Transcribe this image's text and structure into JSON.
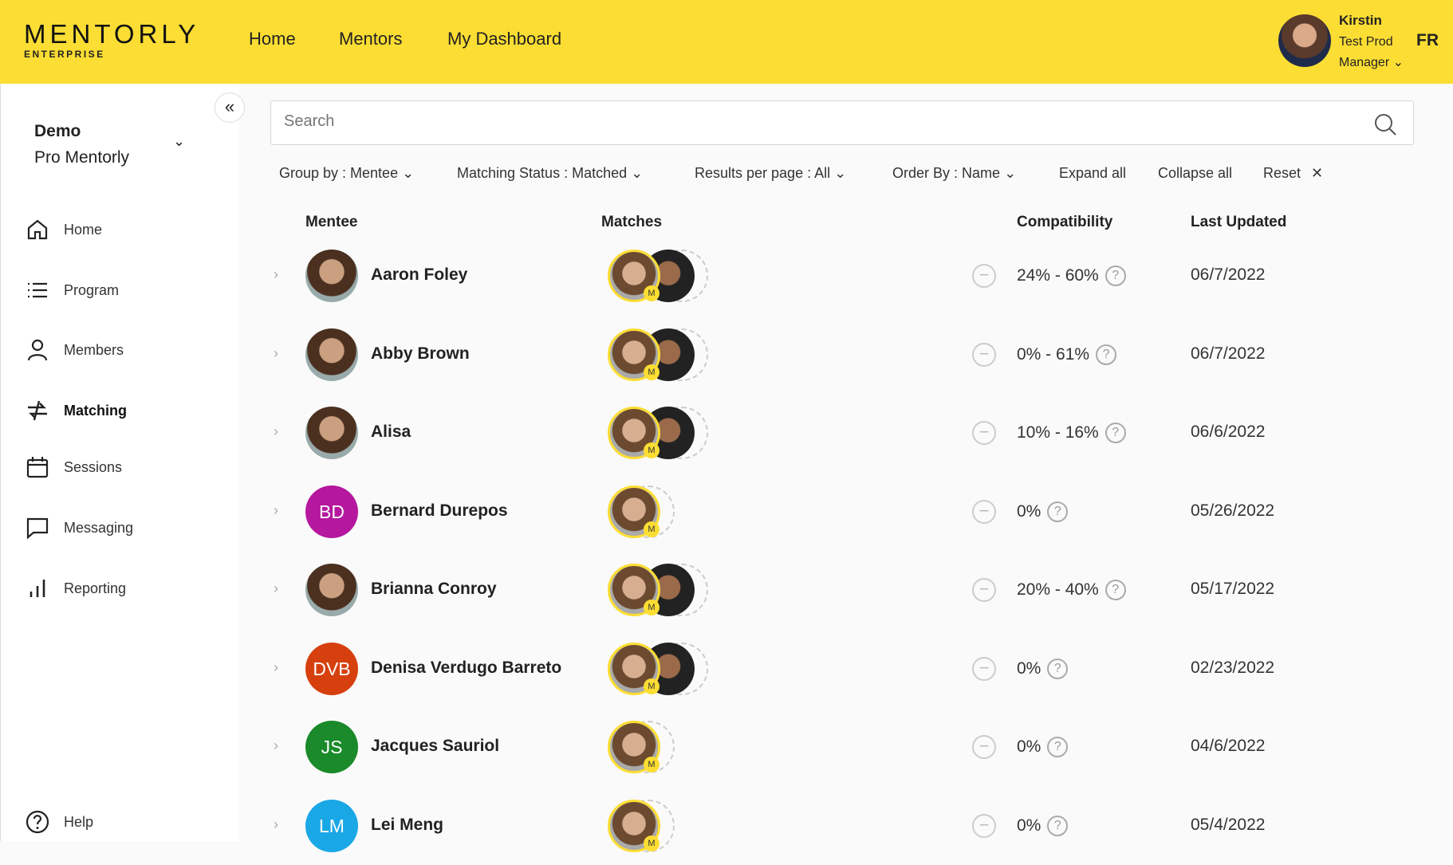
{
  "header": {
    "logo": "MENTORLY",
    "logo_sub": "ENTERPRISE",
    "nav": [
      "Home",
      "Mentors",
      "My Dashboard"
    ],
    "user": {
      "name": "Kirstin",
      "line2": "Test Prod",
      "line3": "Manager"
    },
    "lang": "FR"
  },
  "sidebar": {
    "org_name": "Demo",
    "org_sub": "Pro Mentorly",
    "items": [
      {
        "label": "Home",
        "icon": "home-icon"
      },
      {
        "label": "Program",
        "icon": "list-icon"
      },
      {
        "label": "Members",
        "icon": "person-icon"
      },
      {
        "label": "Matching",
        "icon": "matching-icon",
        "active": true
      },
      {
        "label": "Sessions",
        "icon": "calendar-icon"
      },
      {
        "label": "Messaging",
        "icon": "chat-icon"
      },
      {
        "label": "Reporting",
        "icon": "bar-chart-icon"
      }
    ],
    "help": "Help"
  },
  "search": {
    "placeholder": "Search",
    "value": ""
  },
  "filters": {
    "group_by": "Group by : Mentee",
    "status": "Matching Status : Matched",
    "per_page": "Results per page : All",
    "order": "Order By : Name",
    "expand": "Expand all",
    "collapse": "Collapse all",
    "reset": "Reset"
  },
  "table": {
    "headers": [
      "Mentee",
      "Matches",
      "Compatibility",
      "Last Updated"
    ],
    "rows": [
      {
        "name": "Aaron Foley",
        "initials": "",
        "color": "",
        "matches": 2,
        "compat": "24% - 60%",
        "date": "06/7/2022"
      },
      {
        "name": "Abby Brown",
        "initials": "",
        "color": "",
        "matches": 2,
        "compat": "0% - 61%",
        "date": "06/7/2022"
      },
      {
        "name": "Alisa",
        "initials": "",
        "color": "",
        "matches": 2,
        "compat": "10% - 16%",
        "date": "06/6/2022"
      },
      {
        "name": "Bernard Durepos",
        "initials": "BD",
        "color": "#b5179e",
        "matches": 1,
        "compat": "0%",
        "date": "05/26/2022"
      },
      {
        "name": "Brianna Conroy",
        "initials": "",
        "color": "",
        "matches": 2,
        "compat": "20% - 40%",
        "date": "05/17/2022"
      },
      {
        "name": "Denisa Verdugo Barreto",
        "initials": "DVB",
        "color": "#d6400f",
        "matches": 2,
        "compat": "0%",
        "date": "02/23/2022"
      },
      {
        "name": "Jacques Sauriol",
        "initials": "JS",
        "color": "#1a8a2a",
        "matches": 1,
        "compat": "0%",
        "date": "04/6/2022"
      },
      {
        "name": "Lei Meng",
        "initials": "LM",
        "color": "#1aa7e6",
        "matches": 1,
        "compat": "0%",
        "date": "05/4/2022"
      }
    ]
  },
  "colors": {
    "brand": "#fcdd33"
  }
}
